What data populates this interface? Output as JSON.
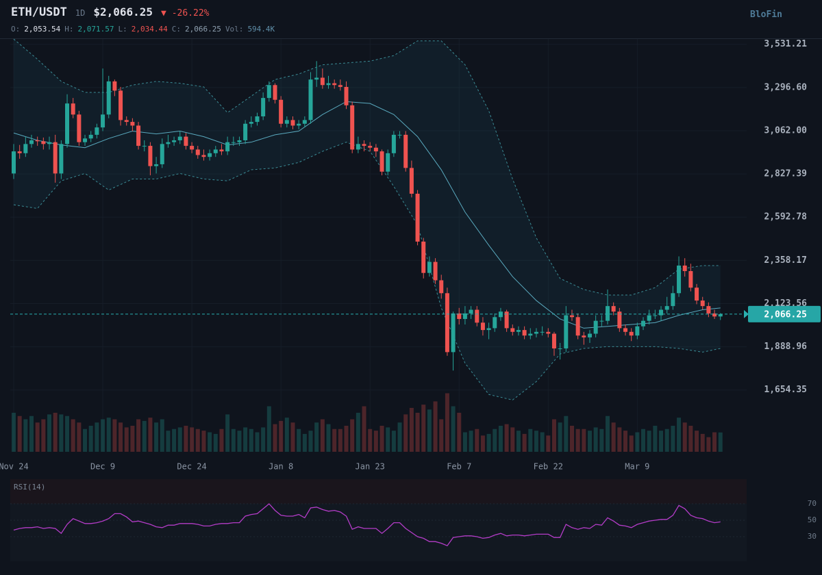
{
  "header": {
    "symbol": "ETH/USDT",
    "interval": "1D",
    "price": "$2,066.25",
    "change": "▼ -26.22%",
    "brand": "BloFin",
    "ohlc": [
      {
        "label": "O:",
        "value": "2,053.54",
        "color": "#e0e3eb"
      },
      {
        "label": "H:",
        "value": "2,071.57",
        "color": "#26a69a"
      },
      {
        "label": "L:",
        "value": "2,034.44",
        "color": "#ef5350"
      },
      {
        "label": "C:",
        "value": "2,066.25",
        "color": "#8fa0b0"
      },
      {
        "label": "Vol:",
        "value": "594.4K",
        "color": "#5f8ea8"
      }
    ]
  },
  "chart_data": [
    {
      "type": "candlestick",
      "up_color": "#26a69a",
      "down_color": "#ef5350",
      "grid": true,
      "price_tag": "2,066.25",
      "ylim": [
        1330,
        3560
      ],
      "yticks": [
        {
          "value": 3531.21,
          "label": "3,531.21"
        },
        {
          "value": 3296.6,
          "label": "3,296.60"
        },
        {
          "value": 3062.0,
          "label": "3,062.00"
        },
        {
          "value": 2827.39,
          "label": "2,827.39"
        },
        {
          "value": 2592.78,
          "label": "2,592.78"
        },
        {
          "value": 2358.17,
          "label": "2,358.17"
        },
        {
          "value": 2123.56,
          "label": "2,123.56"
        },
        {
          "value": 1888.96,
          "label": "1,888.96"
        },
        {
          "value": 1654.35,
          "label": "1,654.35"
        }
      ],
      "xticks": [
        {
          "value": 0,
          "label": "Nov 24"
        },
        {
          "value": 15,
          "label": "Dec 9"
        },
        {
          "value": 30,
          "label": "Dec 24"
        },
        {
          "value": 45,
          "label": "Jan 8"
        },
        {
          "value": 60,
          "label": "Jan 23"
        },
        {
          "value": 75,
          "label": "Feb 7"
        },
        {
          "value": 90,
          "label": "Feb 22"
        },
        {
          "value": 105,
          "label": "Mar 9"
        }
      ],
      "open": [
        2830,
        2950,
        2940,
        2990,
        3010,
        3005,
        2990,
        3000,
        2830,
        2990,
        3210,
        3150,
        3000,
        3020,
        3040,
        3080,
        3150,
        3330,
        3280,
        3120,
        3110,
        3090,
        2980,
        2980,
        2870,
        2880,
        2990,
        3000,
        3010,
        3030,
        2980,
        2960,
        2930,
        2920,
        2940,
        2960,
        2950,
        3000,
        3000,
        3010,
        3100,
        3110,
        3140,
        3240,
        3310,
        3230,
        3100,
        3120,
        3090,
        3100,
        3120,
        3340,
        3350,
        3310,
        3320,
        3310,
        3300,
        3200,
        2960,
        2990,
        2980,
        2970,
        2950,
        2840,
        2940,
        3040,
        3040,
        2860,
        2720,
        2460,
        2290,
        2350,
        2250,
        2180,
        1860,
        2070,
        2040,
        2070,
        2090,
        2020,
        1980,
        1990,
        2050,
        2080,
        1990,
        1970,
        1980,
        1950,
        1960,
        1970,
        1970,
        1960,
        1880,
        1880,
        2060,
        2050,
        1950,
        1940,
        1960,
        2030,
        2030,
        2110,
        2080,
        1990,
        1970,
        1950,
        2000,
        2030,
        2060,
        2060,
        2090,
        2110,
        2180,
        2330,
        2300,
        2210,
        2140,
        2110,
        2070,
        2053.54
      ],
      "high": [
        2990,
        2985,
        3030,
        3040,
        3030,
        3025,
        3030,
        3040,
        3010,
        3260,
        3240,
        3170,
        3040,
        3060,
        3100,
        3400,
        3360,
        3340,
        3300,
        3140,
        3130,
        3110,
        3010,
        3000,
        2920,
        3020,
        3040,
        3030,
        3060,
        3050,
        3000,
        2980,
        2960,
        2960,
        2980,
        2990,
        3030,
        3030,
        3030,
        3120,
        3140,
        3160,
        3270,
        3330,
        3320,
        3250,
        3140,
        3140,
        3120,
        3140,
        3380,
        3440,
        3400,
        3360,
        3340,
        3340,
        3330,
        3220,
        3030,
        3010,
        3000,
        2990,
        2960,
        2960,
        3060,
        3060,
        3060,
        2900,
        2740,
        2480,
        2380,
        2370,
        2280,
        2210,
        2080,
        2100,
        2110,
        2110,
        2110,
        2050,
        2020,
        2070,
        2100,
        2090,
        2010,
        2000,
        2000,
        1990,
        1990,
        2000,
        1990,
        1970,
        1910,
        2110,
        2090,
        2070,
        1970,
        1980,
        2060,
        2060,
        2200,
        2130,
        2100,
        2010,
        1990,
        2020,
        2050,
        2090,
        2090,
        2110,
        2160,
        2220,
        2380,
        2370,
        2340,
        2230,
        2160,
        2130,
        2090,
        2071.57
      ],
      "low": [
        2800,
        2910,
        2920,
        2970,
        2980,
        2960,
        2960,
        2780,
        2800,
        2970,
        3130,
        2980,
        2980,
        3000,
        3020,
        3060,
        3130,
        3250,
        3090,
        3090,
        3060,
        2960,
        2950,
        2820,
        2830,
        2860,
        2970,
        2980,
        2990,
        2960,
        2940,
        2910,
        2900,
        2900,
        2920,
        2930,
        2930,
        2980,
        2980,
        2990,
        3080,
        3090,
        3120,
        3220,
        3210,
        3080,
        3080,
        3070,
        3070,
        3080,
        3100,
        3300,
        3290,
        3290,
        3290,
        3280,
        3180,
        2940,
        2940,
        2950,
        2950,
        2920,
        2820,
        2820,
        2920,
        3020,
        2840,
        2700,
        2440,
        2260,
        2270,
        2230,
        2150,
        1840,
        1760,
        2010,
        2010,
        2040,
        2000,
        1950,
        1930,
        1970,
        2030,
        1970,
        1950,
        1950,
        1930,
        1930,
        1940,
        1950,
        1940,
        1840,
        1820,
        1860,
        2030,
        1930,
        1900,
        1910,
        1940,
        2000,
        2010,
        2060,
        1970,
        1950,
        1920,
        1930,
        1980,
        2010,
        2040,
        2030,
        2070,
        2090,
        2160,
        2270,
        2190,
        2120,
        2090,
        2050,
        2040,
        2034.44
      ],
      "close": [
        2950,
        2940,
        2990,
        3010,
        3005,
        2990,
        3000,
        2830,
        2990,
        3210,
        3150,
        3000,
        3020,
        3040,
        3080,
        3150,
        3330,
        3280,
        3120,
        3110,
        3090,
        2980,
        2980,
        2870,
        2880,
        2990,
        3000,
        3010,
        3030,
        2980,
        2960,
        2930,
        2920,
        2940,
        2960,
        2950,
        3000,
        3000,
        3010,
        3100,
        3110,
        3140,
        3240,
        3310,
        3230,
        3100,
        3120,
        3090,
        3100,
        3120,
        3340,
        3350,
        3310,
        3320,
        3310,
        3300,
        3200,
        2960,
        2990,
        2980,
        2970,
        2950,
        2840,
        2940,
        3040,
        3040,
        2860,
        2720,
        2460,
        2290,
        2350,
        2250,
        2180,
        1860,
        2070,
        2040,
        2070,
        2090,
        2020,
        1980,
        1990,
        2050,
        2080,
        1990,
        1970,
        1980,
        1950,
        1960,
        1970,
        1970,
        1960,
        1880,
        1880,
        2060,
        2050,
        1950,
        1940,
        1960,
        2030,
        2030,
        2110,
        2080,
        1990,
        1970,
        1950,
        2000,
        2030,
        2060,
        2060,
        2090,
        2110,
        2180,
        2330,
        2300,
        2210,
        2140,
        2110,
        2070,
        2053.54,
        2066.25
      ],
      "volume": [
        1200,
        1100,
        1000,
        1100,
        900,
        1000,
        1150,
        1200,
        1150,
        1100,
        1000,
        900,
        700,
        800,
        900,
        1000,
        1050,
        1000,
        900,
        750,
        800,
        1000,
        950,
        1050,
        900,
        1000,
        650,
        700,
        750,
        800,
        750,
        700,
        650,
        600,
        550,
        700,
        1150,
        700,
        650,
        750,
        700,
        600,
        750,
        1400,
        850,
        950,
        1050,
        900,
        700,
        550,
        650,
        900,
        1000,
        850,
        700,
        700,
        800,
        1000,
        1200,
        1400,
        700,
        650,
        800,
        750,
        650,
        900,
        1150,
        1350,
        1200,
        1450,
        1300,
        1550,
        1000,
        1800,
        1400,
        1200,
        600,
        650,
        700,
        500,
        550,
        700,
        800,
        850,
        750,
        650,
        550,
        700,
        650,
        600,
        500,
        1000,
        900,
        1100,
        800,
        700,
        700,
        650,
        750,
        700,
        1100,
        900,
        750,
        650,
        500,
        600,
        700,
        650,
        800,
        650,
        700,
        800,
        1050,
        900,
        800,
        650,
        550,
        450,
        600,
        594.4
      ],
      "volume_ylim": [
        0,
        2000
      ],
      "bands": {
        "x": [
          0,
          4,
          8,
          12,
          16,
          20,
          24,
          28,
          32,
          36,
          40,
          44,
          48,
          52,
          56,
          60,
          64,
          68,
          72,
          76,
          80,
          84,
          88,
          92,
          96,
          100,
          104,
          108,
          112,
          116,
          119
        ],
        "upper": [
          3560,
          3450,
          3330,
          3270,
          3270,
          3310,
          3330,
          3320,
          3300,
          3160,
          3250,
          3340,
          3370,
          3420,
          3430,
          3440,
          3470,
          3550,
          3550,
          3420,
          3170,
          2800,
          2480,
          2260,
          2200,
          2170,
          2170,
          2210,
          2310,
          2330,
          2330
        ],
        "middle": [
          3050,
          3010,
          2985,
          2970,
          3020,
          3060,
          3045,
          3060,
          3030,
          2985,
          3000,
          3040,
          3060,
          3150,
          3220,
          3210,
          3150,
          3030,
          2850,
          2620,
          2440,
          2270,
          2140,
          2040,
          1990,
          2000,
          2010,
          2020,
          2060,
          2090,
          2100
        ],
        "lower": [
          2660,
          2640,
          2790,
          2830,
          2740,
          2800,
          2800,
          2830,
          2800,
          2790,
          2850,
          2860,
          2890,
          2950,
          3000,
          2950,
          2760,
          2550,
          2100,
          1800,
          1630,
          1600,
          1700,
          1850,
          1880,
          1890,
          1890,
          1890,
          1880,
          1860,
          1880
        ]
      }
    },
    {
      "type": "line",
      "title": "RSI(14)",
      "color": "#b43cc8",
      "ylim": [
        0,
        100
      ],
      "yticks": [
        70,
        50,
        30
      ],
      "values": [
        38,
        40,
        41,
        41,
        42,
        40,
        41,
        40,
        34,
        45,
        52,
        49,
        46,
        46,
        47,
        49,
        52,
        58,
        58,
        54,
        48,
        49,
        47,
        45,
        42,
        41,
        44,
        44,
        46,
        46,
        46,
        45,
        43,
        43,
        45,
        46,
        46,
        47,
        47,
        55,
        57,
        58,
        64,
        70,
        62,
        56,
        55,
        55,
        57,
        53,
        65,
        66,
        63,
        61,
        62,
        60,
        55,
        39,
        42,
        40,
        40,
        40,
        34,
        40,
        47,
        47,
        40,
        35,
        30,
        28,
        24,
        24,
        22,
        19,
        29,
        30,
        31,
        31,
        30,
        28,
        29,
        32,
        34,
        31,
        32,
        32,
        31,
        32,
        33,
        33,
        33,
        29,
        29,
        45,
        41,
        39,
        41,
        40,
        45,
        44,
        53,
        49,
        44,
        43,
        41,
        45,
        47,
        49,
        50,
        51,
        51,
        56,
        68,
        64,
        56,
        53,
        52,
        49,
        47,
        48
      ]
    }
  ]
}
